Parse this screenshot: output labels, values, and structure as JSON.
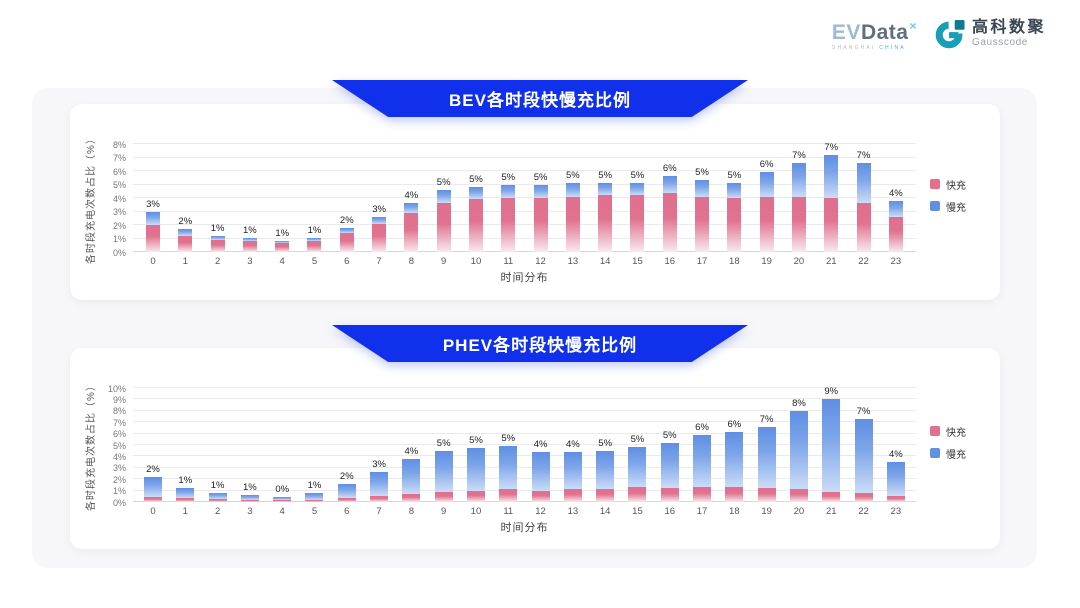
{
  "header": {
    "evdata": {
      "ev": "EV",
      "data": "Data",
      "sup": "×",
      "sub_left": "SHANGHAI",
      "sub_right": "CHINA"
    },
    "gausscode": {
      "name_cn": "高科数聚",
      "name_en": "Gausscode"
    }
  },
  "colors": {
    "banner_blue": "#1130EC",
    "fast_pink": "#E0708E",
    "slow_blue": "#6090E2",
    "panel_grey": "#F7F7F9"
  },
  "chart_data": [
    {
      "id": "bev",
      "type": "bar",
      "stacked": true,
      "title": "BEV各时段快慢充比例",
      "xlabel": "时间分布",
      "ylabel": "各时段充电次数占比（%）",
      "ylim": [
        0,
        8
      ],
      "ytick_step": 1,
      "ytick_suffix": "%",
      "grid": true,
      "legend_position": "right",
      "categories": [
        0,
        1,
        2,
        3,
        4,
        5,
        6,
        7,
        8,
        9,
        10,
        11,
        12,
        13,
        14,
        15,
        16,
        17,
        18,
        19,
        20,
        21,
        22,
        23
      ],
      "series": [
        {
          "name": "快充",
          "color": "#E0708E",
          "values": [
            2.0,
            1.2,
            0.9,
            0.8,
            0.65,
            0.85,
            1.4,
            2.1,
            2.9,
            3.6,
            3.9,
            4.0,
            4.0,
            4.1,
            4.2,
            4.2,
            4.4,
            4.1,
            4.0,
            4.1,
            4.1,
            4.0,
            3.6,
            2.6
          ]
        },
        {
          "name": "慢充",
          "color": "#6090E2",
          "values": [
            1.0,
            0.5,
            0.3,
            0.25,
            0.2,
            0.2,
            0.4,
            0.5,
            0.7,
            1.0,
            0.9,
            1.0,
            1.0,
            1.0,
            0.9,
            0.9,
            1.2,
            1.2,
            1.1,
            1.8,
            2.5,
            3.2,
            3.0,
            1.2
          ]
        }
      ],
      "bar_labels": [
        "3%",
        "2%",
        "1%",
        "1%",
        "1%",
        "1%",
        "2%",
        "3%",
        "4%",
        "5%",
        "5%",
        "5%",
        "5%",
        "5%",
        "5%",
        "5%",
        "6%",
        "5%",
        "5%",
        "6%",
        "7%",
        "7%",
        "7%",
        "4%"
      ]
    },
    {
      "id": "phev",
      "type": "bar",
      "stacked": true,
      "title": "PHEV各时段快慢充比例",
      "xlabel": "时间分布",
      "ylabel": "各时段充电次数占比（%）",
      "ylim": [
        0,
        10
      ],
      "ytick_step": 1,
      "ytick_suffix": "%",
      "grid": true,
      "legend_position": "right",
      "categories": [
        0,
        1,
        2,
        3,
        4,
        5,
        6,
        7,
        8,
        9,
        10,
        11,
        12,
        13,
        14,
        15,
        16,
        17,
        18,
        19,
        20,
        21,
        22,
        23
      ],
      "series": [
        {
          "name": "快充",
          "color": "#E0708E",
          "values": [
            0.4,
            0.35,
            0.25,
            0.2,
            0.15,
            0.2,
            0.35,
            0.5,
            0.7,
            0.9,
            1.0,
            1.1,
            1.0,
            1.1,
            1.1,
            1.3,
            1.2,
            1.3,
            1.3,
            1.2,
            1.1,
            0.9,
            0.8,
            0.5
          ]
        },
        {
          "name": "慢充",
          "color": "#6090E2",
          "values": [
            1.8,
            0.85,
            0.55,
            0.4,
            0.3,
            0.55,
            1.2,
            2.1,
            3.1,
            3.6,
            3.7,
            3.8,
            3.4,
            3.3,
            3.4,
            3.5,
            4.0,
            4.6,
            4.8,
            5.4,
            6.9,
            8.1,
            6.5,
            3.0
          ]
        }
      ],
      "bar_labels": [
        "2%",
        "1%",
        "1%",
        "1%",
        "0%",
        "1%",
        "2%",
        "3%",
        "4%",
        "5%",
        "5%",
        "5%",
        "4%",
        "4%",
        "5%",
        "5%",
        "5%",
        "6%",
        "6%",
        "7%",
        "8%",
        "9%",
        "7%",
        "4%"
      ]
    }
  ]
}
